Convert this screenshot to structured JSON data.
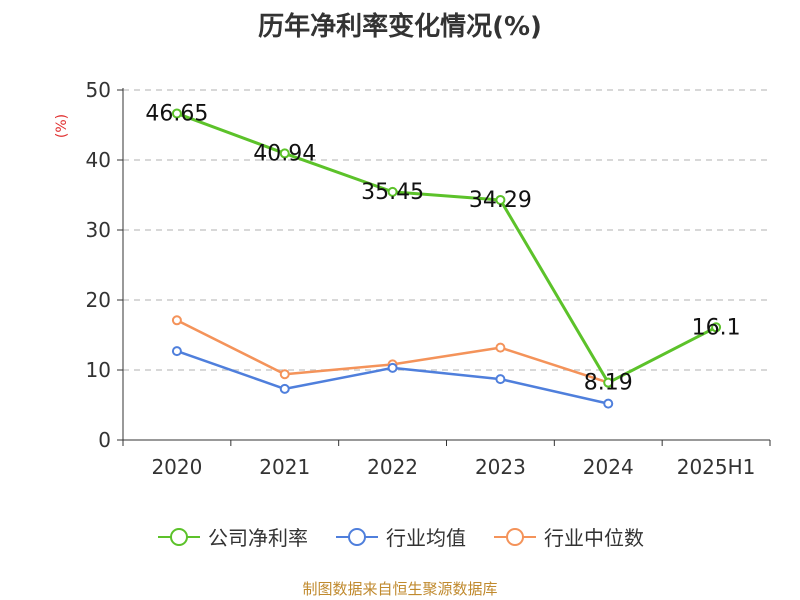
{
  "title": "历年净利率变化情况(%)",
  "source": "制图数据来自恒生聚源数据库",
  "colors": {
    "company": "#5cc22a",
    "industry_avg": "#4f7fdc",
    "industry_median": "#f4935a"
  },
  "chart_data": {
    "type": "line",
    "title": "历年净利率变化情况(%)",
    "ylabel": "(%)",
    "xlabel": "",
    "categories": [
      "2020",
      "2021",
      "2022",
      "2023",
      "2024",
      "2025H1"
    ],
    "ylim": [
      0,
      50
    ],
    "yticks": [
      0,
      10,
      20,
      30,
      40,
      50
    ],
    "grid": true,
    "legend_position": "bottom",
    "series": [
      {
        "name": "公司净利率",
        "color": "#5cc22a",
        "values": [
          46.65,
          40.94,
          35.45,
          34.29,
          8.19,
          16.1
        ],
        "labels": [
          "46.65",
          "40.94",
          "35.45",
          "34.29",
          "8.19",
          "16.1"
        ]
      },
      {
        "name": "行业均值",
        "color": "#4f7fdc",
        "values": [
          12.7,
          7.3,
          10.3,
          8.7,
          5.2,
          null
        ]
      },
      {
        "name": "行业中位数",
        "color": "#f4935a",
        "values": [
          17.1,
          9.4,
          10.8,
          13.2,
          8.2,
          null
        ]
      }
    ]
  }
}
